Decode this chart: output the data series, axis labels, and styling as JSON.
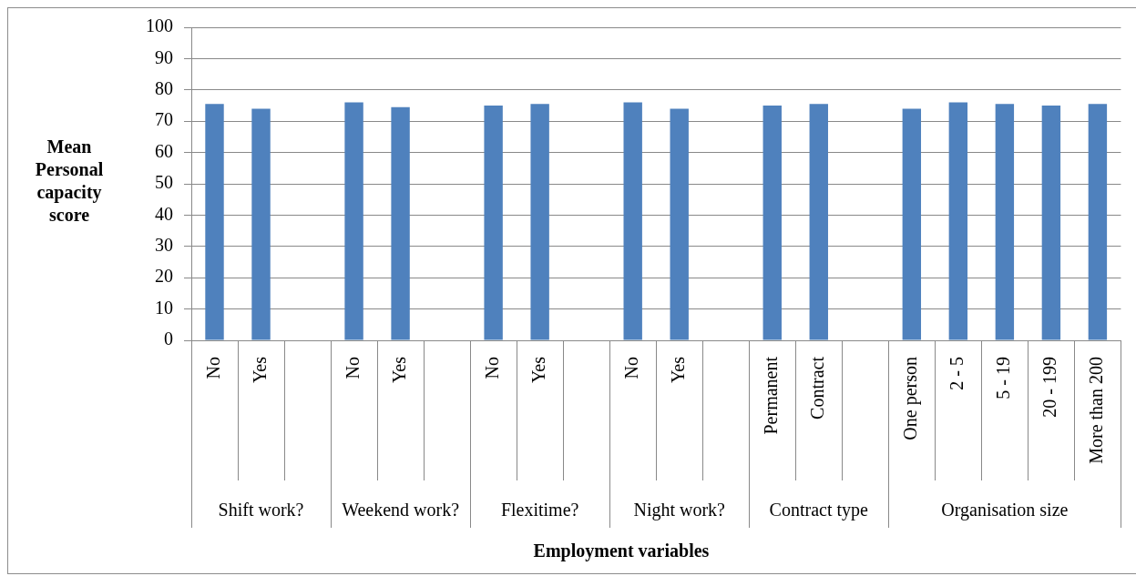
{
  "chart_data": {
    "type": "bar",
    "ylabel": "Mean Personal capacity score",
    "xlabel": "Employment variables",
    "categories": [
      "No",
      "Yes",
      null,
      "No",
      "Yes",
      null,
      "No",
      "Yes",
      null,
      "No",
      "Yes",
      null,
      "Permanent",
      "Contract",
      null,
      "One person",
      "2 - 5",
      "5 - 19",
      "20 - 199",
      "More than 200"
    ],
    "values": [
      75.5,
      74,
      null,
      76,
      74.5,
      null,
      75,
      75.5,
      null,
      76,
      74,
      null,
      75,
      75.5,
      null,
      74,
      76,
      75.5,
      75,
      75.5
    ],
    "color": "#4f81bd",
    "annotations": [
      "Shift work?",
      "Weekend work?",
      "Flexitime?",
      "Night work?",
      "Contract type",
      "Organisation size"
    ],
    "ylim": [
      0,
      100
    ],
    "yticks": [
      0,
      10,
      20,
      30,
      40,
      50,
      60,
      70,
      80,
      90,
      100
    ],
    "grid": "y"
  }
}
